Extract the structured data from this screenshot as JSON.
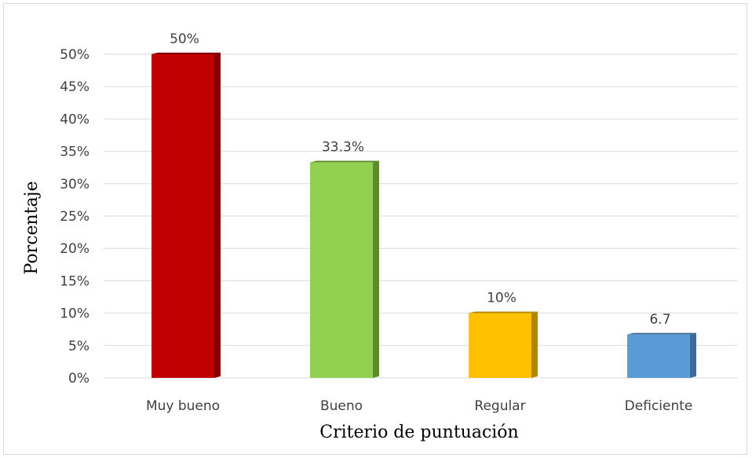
{
  "chart_data": {
    "type": "bar",
    "categories": [
      "Muy bueno",
      "Bueno",
      "Regular",
      "Deficiente"
    ],
    "values": [
      50,
      33.3,
      10,
      6.7
    ],
    "data_labels": [
      "50%",
      "33.3%",
      "10%",
      "6.7"
    ],
    "colors": [
      "#c00000",
      "#92d050",
      "#ffc000",
      "#5b9bd5"
    ],
    "side_colors": [
      "#800000",
      "#5e8a2e",
      "#b38600",
      "#3a6b9a"
    ],
    "title": "",
    "xlabel": "Criterio de puntuación",
    "ylabel": "Porcentaje",
    "ylim": [
      0,
      50
    ],
    "yticks": [
      0,
      5,
      10,
      15,
      20,
      25,
      30,
      35,
      40,
      45,
      50
    ],
    "ytick_labels": [
      "0%",
      "5%",
      "10%",
      "15%",
      "20%",
      "25%",
      "30%",
      "35%",
      "40%",
      "45%",
      "50%"
    ],
    "grid": true,
    "legend": "none"
  }
}
